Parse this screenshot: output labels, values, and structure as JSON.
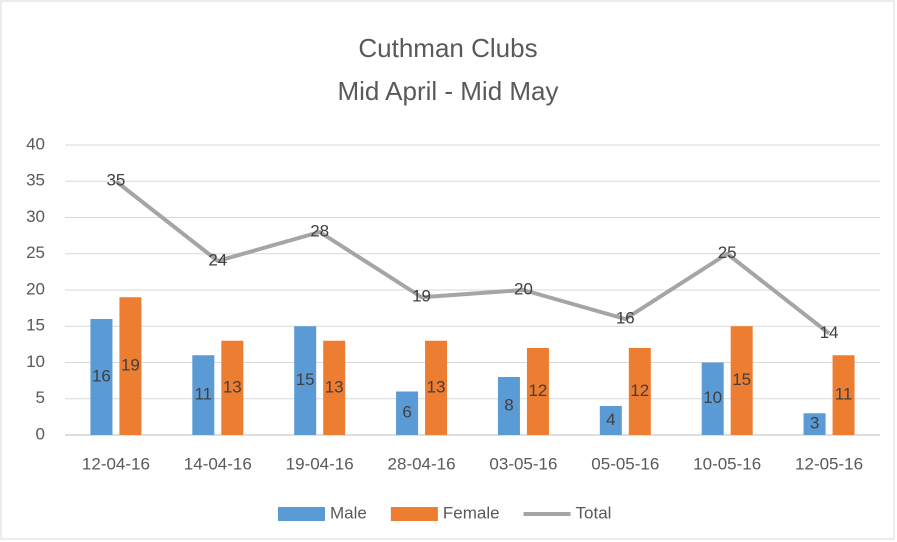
{
  "chart_data": {
    "type": "bar",
    "title": "Cuthman Clubs",
    "subtitle": "Mid April - Mid May",
    "categories": [
      "12-04-16",
      "14-04-16",
      "19-04-16",
      "28-04-16",
      "03-05-16",
      "05-05-16",
      "10-05-16",
      "12-05-16"
    ],
    "series": [
      {
        "name": "Male",
        "color": "#5b9bd5",
        "type": "bar",
        "values": [
          16,
          11,
          15,
          6,
          8,
          4,
          10,
          3
        ]
      },
      {
        "name": "Female",
        "color": "#ed7d31",
        "type": "bar",
        "values": [
          19,
          13,
          13,
          13,
          12,
          12,
          15,
          11
        ]
      },
      {
        "name": "Total",
        "color": "#a5a5a5",
        "type": "line",
        "values": [
          35,
          24,
          28,
          19,
          20,
          16,
          25,
          14
        ]
      }
    ],
    "ylim": [
      0,
      40
    ],
    "yticks": [
      0,
      5,
      10,
      15,
      20,
      25,
      30,
      35,
      40
    ],
    "grid": true,
    "legend": "bottom"
  }
}
